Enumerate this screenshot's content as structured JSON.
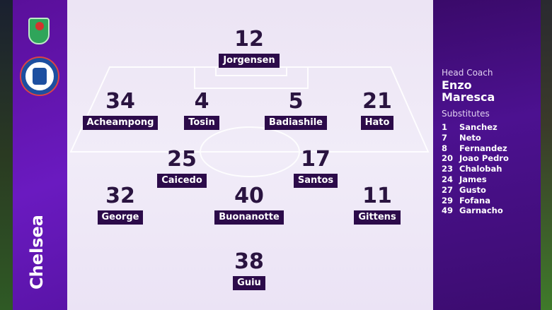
{
  "team": {
    "name": "Chelsea",
    "competition_logo": "Carabao Cup",
    "club_crest": "Chelsea Football Club"
  },
  "lineup": [
    {
      "number": "12",
      "name": "Jorgensen"
    },
    {
      "number": "34",
      "name": "Acheampong"
    },
    {
      "number": "4",
      "name": "Tosin"
    },
    {
      "number": "5",
      "name": "Badiashile"
    },
    {
      "number": "21",
      "name": "Hato"
    },
    {
      "number": "25",
      "name": "Caicedo"
    },
    {
      "number": "17",
      "name": "Santos"
    },
    {
      "number": "32",
      "name": "George"
    },
    {
      "number": "40",
      "name": "Buonanotte"
    },
    {
      "number": "11",
      "name": "Gittens"
    },
    {
      "number": "38",
      "name": "Guiu"
    }
  ],
  "coach": {
    "label": "Head Coach",
    "first": "Enzo",
    "last": "Maresca"
  },
  "substitutes": {
    "label": "Substitutes",
    "items": [
      {
        "number": "1",
        "name": "Sanchez"
      },
      {
        "number": "7",
        "name": "Neto"
      },
      {
        "number": "8",
        "name": "Fernandez"
      },
      {
        "number": "20",
        "name": "Joao Pedro"
      },
      {
        "number": "23",
        "name": "Chalobah"
      },
      {
        "number": "24",
        "name": "James"
      },
      {
        "number": "27",
        "name": "Gusto"
      },
      {
        "number": "29",
        "name": "Fofana"
      },
      {
        "number": "49",
        "name": "Garnacho"
      }
    ]
  },
  "colors": {
    "panel": "#4c1190",
    "label_bg": "#2c0b4a",
    "pitch": "#f1ecf8"
  }
}
